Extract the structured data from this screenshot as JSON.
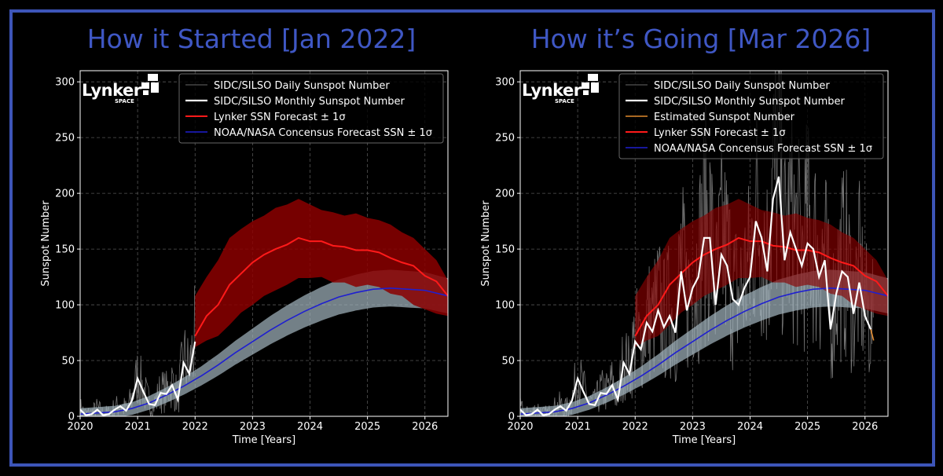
{
  "colors": {
    "background": "#000000",
    "frame": "#3d55b8",
    "title": "#3f57c4",
    "daily": "#8a8a8a",
    "monthly": "#ffffff",
    "estimated": "#e08a2e",
    "lynker": "#ff1a1a",
    "lynker_band": "#8b0000",
    "noaa": "#1f1fd0",
    "noaa_band": "#9fb2bb"
  },
  "logo": {
    "word": "Lynker",
    "sub": "SPACE"
  },
  "chart_data": [
    {
      "type": "line",
      "panel_title": "How it Started [Jan 2022]",
      "xlabel": "Time [Years]",
      "ylabel": "Sunspot Number",
      "xlim": [
        2020,
        2026.4
      ],
      "ylim": [
        0,
        310
      ],
      "xticks": [
        2020,
        2021,
        2022,
        2023,
        2024,
        2025,
        2026
      ],
      "yticks": [
        0,
        50,
        100,
        150,
        200,
        250,
        300
      ],
      "grid": true,
      "legend_position": "top-right",
      "legend": [
        {
          "label": "SIDC/SILSO Daily Sunspot Number",
          "key": "daily"
        },
        {
          "label": "SIDC/SILSO Monthly Sunspot Number",
          "key": "monthly"
        },
        {
          "label": "Lynker SSN Forecast ± 1σ",
          "key": "lynker"
        },
        {
          "label": "NOAA/NASA Concensus Forecast SSN ± 1σ",
          "key": "noaa"
        }
      ],
      "series": [
        {
          "key": "monthly",
          "x": [
            2020.0,
            2020.1,
            2020.2,
            2020.3,
            2020.4,
            2020.5,
            2020.6,
            2020.7,
            2020.8,
            2020.9,
            2021.0,
            2021.1,
            2021.2,
            2021.3,
            2021.4,
            2021.5,
            2021.6,
            2021.7,
            2021.8,
            2021.9,
            2022.0
          ],
          "y": [
            6,
            1,
            2,
            6,
            1,
            2,
            6,
            9,
            5,
            14,
            34,
            22,
            11,
            10,
            21,
            20,
            28,
            15,
            48,
            38,
            67
          ]
        },
        {
          "key": "lynker",
          "x": [
            2022.0,
            2022.2,
            2022.4,
            2022.6,
            2022.8,
            2023.0,
            2023.2,
            2023.4,
            2023.6,
            2023.8,
            2024.0,
            2024.2,
            2024.4,
            2024.6,
            2024.8,
            2025.0,
            2025.2,
            2025.4,
            2025.6,
            2025.8,
            2026.0,
            2026.2,
            2026.4
          ],
          "y": [
            72,
            90,
            100,
            118,
            128,
            138,
            145,
            150,
            154,
            160,
            157,
            157,
            153,
            152,
            149,
            149,
            147,
            142,
            138,
            135,
            126,
            121,
            108
          ]
        },
        {
          "key": "lynker_upper",
          "x": [
            2022.0,
            2022.2,
            2022.4,
            2022.6,
            2022.8,
            2023.0,
            2023.2,
            2023.4,
            2023.6,
            2023.8,
            2024.0,
            2024.2,
            2024.4,
            2024.6,
            2024.8,
            2025.0,
            2025.2,
            2025.4,
            2025.6,
            2025.8,
            2026.0,
            2026.2,
            2026.4
          ],
          "y": [
            108,
            125,
            140,
            160,
            168,
            175,
            180,
            187,
            190,
            195,
            190,
            185,
            183,
            180,
            182,
            178,
            176,
            172,
            165,
            160,
            150,
            140,
            122
          ]
        },
        {
          "key": "lynker_lower",
          "x": [
            2022.0,
            2022.2,
            2022.4,
            2022.6,
            2022.8,
            2023.0,
            2023.2,
            2023.4,
            2023.6,
            2023.8,
            2024.0,
            2024.2,
            2024.4,
            2024.6,
            2024.8,
            2025.0,
            2025.2,
            2025.4,
            2025.6,
            2025.8,
            2026.0,
            2026.2,
            2026.4
          ],
          "y": [
            62,
            68,
            72,
            82,
            93,
            100,
            108,
            113,
            118,
            124,
            124,
            125,
            120,
            120,
            116,
            118,
            116,
            110,
            108,
            100,
            96,
            92,
            90
          ]
        },
        {
          "key": "noaa",
          "x": [
            2020.0,
            2020.3,
            2020.6,
            2020.9,
            2021.2,
            2021.5,
            2021.8,
            2022.1,
            2022.4,
            2022.7,
            2023.0,
            2023.3,
            2023.6,
            2023.9,
            2024.2,
            2024.5,
            2024.8,
            2025.1,
            2025.4,
            2025.7,
            2026.0,
            2026.4
          ],
          "y": [
            2,
            3,
            4,
            7,
            12,
            19,
            27,
            36,
            46,
            57,
            67,
            77,
            86,
            94,
            101,
            107,
            111,
            114,
            115,
            114,
            113,
            108
          ]
        }
      ]
    },
    {
      "type": "line",
      "panel_title": "How it’s Going [Mar 2026]",
      "xlabel": "Time [Years]",
      "ylabel": "Sunspot Number",
      "xlim": [
        2020,
        2026.4
      ],
      "ylim": [
        0,
        310
      ],
      "xticks": [
        2020,
        2021,
        2022,
        2023,
        2024,
        2025,
        2026
      ],
      "yticks": [
        0,
        50,
        100,
        150,
        200,
        250,
        300
      ],
      "grid": true,
      "legend_position": "top-right",
      "legend": [
        {
          "label": "SIDC/SILSO Daily Sunspot Number",
          "key": "daily"
        },
        {
          "label": "SIDC/SILSO Monthly Sunspot Number",
          "key": "monthly"
        },
        {
          "label": "Estimated Sunspot Number",
          "key": "estimated"
        },
        {
          "label": "Lynker SSN Forecast ± 1σ",
          "key": "lynker"
        },
        {
          "label": "NOAA/NASA Concensus Forecast SSN ± 1σ",
          "key": "noaa"
        }
      ],
      "series": [
        {
          "key": "monthly",
          "x": [
            2020.0,
            2020.1,
            2020.2,
            2020.3,
            2020.4,
            2020.5,
            2020.6,
            2020.7,
            2020.8,
            2020.9,
            2021.0,
            2021.1,
            2021.2,
            2021.3,
            2021.4,
            2021.5,
            2021.6,
            2021.7,
            2021.8,
            2021.9,
            2022.0,
            2022.1,
            2022.2,
            2022.3,
            2022.4,
            2022.5,
            2022.6,
            2022.7,
            2022.8,
            2022.9,
            2023.0,
            2023.1,
            2023.2,
            2023.3,
            2023.4,
            2023.5,
            2023.6,
            2023.7,
            2023.8,
            2023.9,
            2024.0,
            2024.1,
            2024.2,
            2024.3,
            2024.4,
            2024.5,
            2024.6,
            2024.7,
            2024.8,
            2024.9,
            2025.0,
            2025.1,
            2025.2,
            2025.3,
            2025.4,
            2025.5,
            2025.6,
            2025.7,
            2025.8,
            2025.9,
            2026.0,
            2026.1
          ],
          "y": [
            6,
            1,
            2,
            6,
            1,
            2,
            6,
            9,
            5,
            14,
            34,
            22,
            11,
            10,
            21,
            20,
            28,
            15,
            48,
            38,
            67,
            60,
            84,
            76,
            95,
            80,
            90,
            75,
            130,
            95,
            115,
            125,
            160,
            160,
            100,
            145,
            135,
            105,
            100,
            115,
            125,
            175,
            160,
            130,
            195,
            215,
            140,
            165,
            150,
            135,
            155,
            150,
            125,
            140,
            78,
            110,
            130,
            125,
            92,
            120,
            90,
            78
          ]
        },
        {
          "key": "estimated",
          "x": [
            2026.1,
            2026.15
          ],
          "y": [
            78,
            68
          ]
        },
        {
          "key": "lynker",
          "x": [
            2022.0,
            2022.2,
            2022.4,
            2022.6,
            2022.8,
            2023.0,
            2023.2,
            2023.4,
            2023.6,
            2023.8,
            2024.0,
            2024.2,
            2024.4,
            2024.6,
            2024.8,
            2025.0,
            2025.2,
            2025.4,
            2025.6,
            2025.8,
            2026.0,
            2026.2,
            2026.4
          ],
          "y": [
            72,
            90,
            100,
            118,
            128,
            138,
            145,
            150,
            154,
            160,
            157,
            157,
            153,
            152,
            149,
            149,
            147,
            142,
            138,
            135,
            126,
            121,
            108
          ]
        },
        {
          "key": "lynker_upper",
          "x": [
            2022.0,
            2022.2,
            2022.4,
            2022.6,
            2022.8,
            2023.0,
            2023.2,
            2023.4,
            2023.6,
            2023.8,
            2024.0,
            2024.2,
            2024.4,
            2024.6,
            2024.8,
            2025.0,
            2025.2,
            2025.4,
            2025.6,
            2025.8,
            2026.0,
            2026.2,
            2026.4
          ],
          "y": [
            108,
            125,
            140,
            160,
            168,
            175,
            180,
            187,
            190,
            195,
            190,
            185,
            183,
            180,
            182,
            178,
            176,
            172,
            165,
            160,
            150,
            140,
            122
          ]
        },
        {
          "key": "lynker_lower",
          "x": [
            2022.0,
            2022.2,
            2022.4,
            2022.6,
            2022.8,
            2023.0,
            2023.2,
            2023.4,
            2023.6,
            2023.8,
            2024.0,
            2024.2,
            2024.4,
            2024.6,
            2024.8,
            2025.0,
            2025.2,
            2025.4,
            2025.6,
            2025.8,
            2026.0,
            2026.2,
            2026.4
          ],
          "y": [
            62,
            68,
            72,
            82,
            93,
            100,
            108,
            113,
            118,
            124,
            124,
            125,
            120,
            120,
            116,
            118,
            116,
            110,
            108,
            100,
            96,
            92,
            90
          ]
        },
        {
          "key": "noaa",
          "x": [
            2020.0,
            2020.3,
            2020.6,
            2020.9,
            2021.2,
            2021.5,
            2021.8,
            2022.1,
            2022.4,
            2022.7,
            2023.0,
            2023.3,
            2023.6,
            2023.9,
            2024.2,
            2024.5,
            2024.8,
            2025.1,
            2025.4,
            2025.7,
            2026.0,
            2026.4
          ],
          "y": [
            2,
            3,
            4,
            7,
            12,
            19,
            27,
            36,
            46,
            57,
            67,
            77,
            86,
            94,
            101,
            107,
            111,
            114,
            115,
            114,
            113,
            108
          ]
        }
      ]
    }
  ]
}
